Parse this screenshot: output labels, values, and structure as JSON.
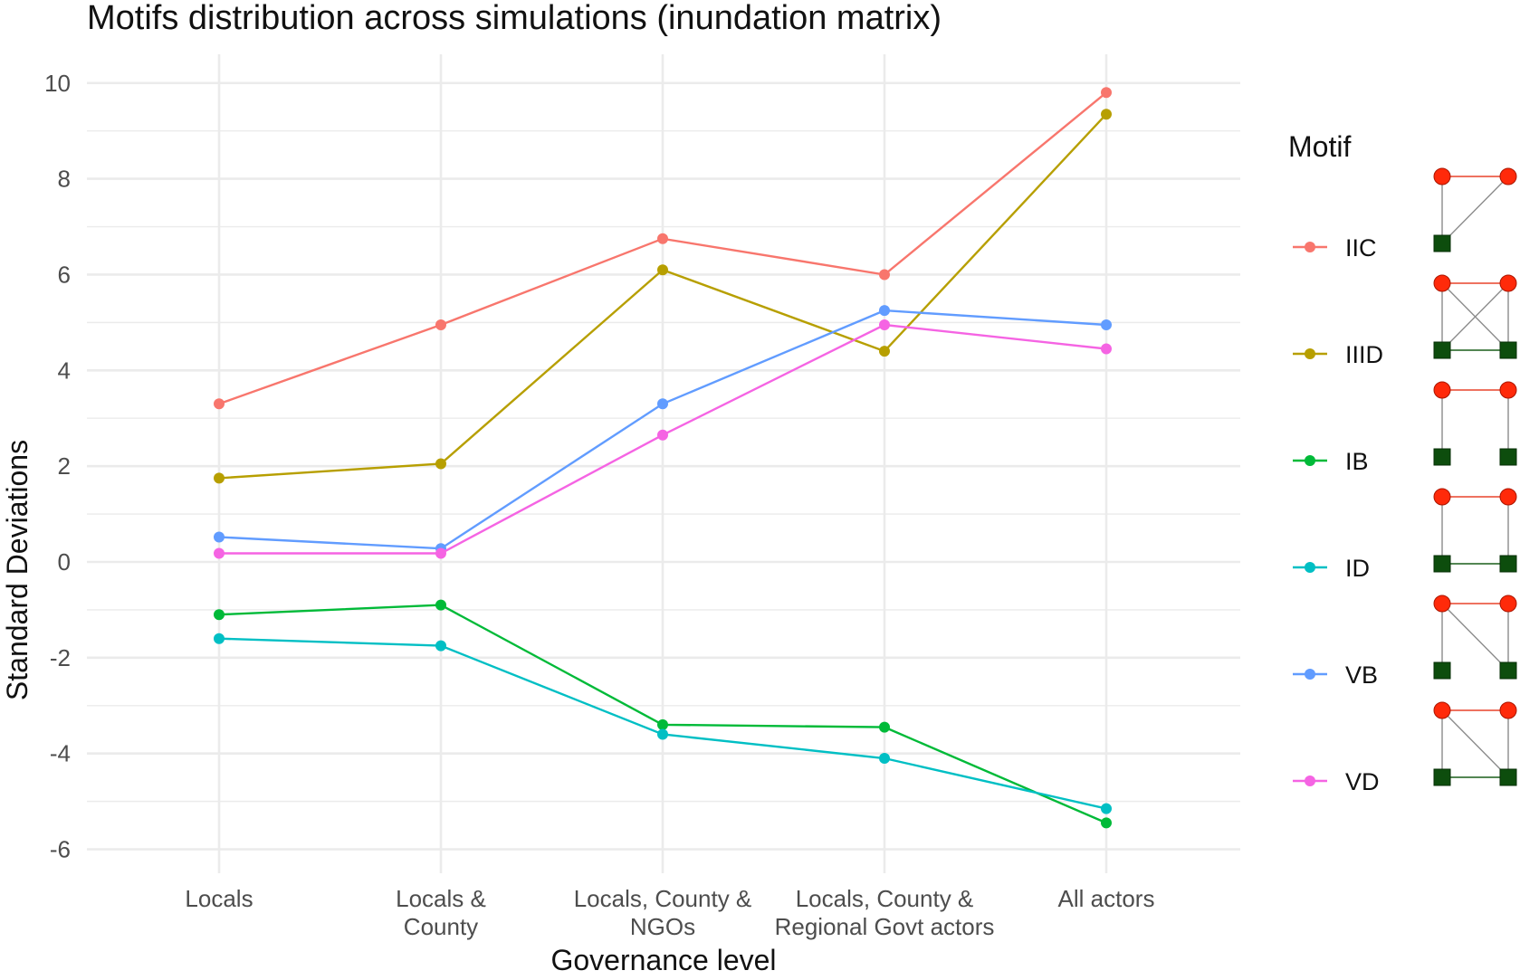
{
  "chart_data": {
    "type": "line",
    "title": "Motifs distribution across simulations (inundation matrix)",
    "xlabel": "Governance level",
    "ylabel": "Standard Deviations",
    "categories": [
      [
        "Locals"
      ],
      [
        "Locals &",
        "County"
      ],
      [
        "Locals, County &",
        "NGOs"
      ],
      [
        "Locals, County &",
        "Regional Govt actors"
      ],
      [
        "All actors"
      ]
    ],
    "ylim": [
      -6.5,
      10.6
    ],
    "yticks": [
      -6,
      -4,
      -2,
      0,
      2,
      4,
      6,
      8,
      10
    ],
    "grid": true,
    "legend": {
      "title": "Motif",
      "placement": "right"
    },
    "series": [
      {
        "name": "IIC",
        "color": "#F8766D",
        "values": [
          3.3,
          4.95,
          6.75,
          6.0,
          9.8
        ],
        "motif": {
          "squares": [
            "bl"
          ],
          "red_edges": [
            [
              "tl",
              "tr"
            ]
          ],
          "gray_edges": [
            [
              "tl",
              "bl"
            ],
            [
              "tr",
              "bl"
            ]
          ],
          "green_edges": []
        }
      },
      {
        "name": "IIID",
        "color": "#B79F00",
        "values": [
          1.75,
          2.05,
          6.1,
          4.4,
          9.35
        ],
        "motif": {
          "squares": [
            "bl",
            "br"
          ],
          "red_edges": [
            [
              "tl",
              "tr"
            ]
          ],
          "gray_edges": [
            [
              "tl",
              "bl"
            ],
            [
              "tr",
              "br"
            ],
            [
              "tl",
              "br"
            ],
            [
              "tr",
              "bl"
            ]
          ],
          "green_edges": [
            [
              "bl",
              "br"
            ]
          ]
        }
      },
      {
        "name": "IB",
        "color": "#00BA38",
        "values": [
          -1.1,
          -0.9,
          -3.4,
          -3.45,
          -5.45
        ],
        "motif": {
          "squares": [
            "bl",
            "br"
          ],
          "red_edges": [
            [
              "tl",
              "tr"
            ]
          ],
          "gray_edges": [
            [
              "tl",
              "bl"
            ],
            [
              "tr",
              "br"
            ]
          ],
          "green_edges": []
        }
      },
      {
        "name": "ID",
        "color": "#00BFC4",
        "values": [
          -1.6,
          -1.75,
          -3.6,
          -4.1,
          -5.15
        ],
        "motif": {
          "squares": [
            "bl",
            "br"
          ],
          "red_edges": [
            [
              "tl",
              "tr"
            ]
          ],
          "gray_edges": [
            [
              "tl",
              "bl"
            ],
            [
              "tr",
              "br"
            ]
          ],
          "green_edges": [
            [
              "bl",
              "br"
            ]
          ]
        }
      },
      {
        "name": "VB",
        "color": "#619CFF",
        "values": [
          0.52,
          0.28,
          3.3,
          5.25,
          4.95
        ],
        "motif": {
          "squares": [
            "bl",
            "br"
          ],
          "red_edges": [
            [
              "tl",
              "tr"
            ]
          ],
          "gray_edges": [
            [
              "tl",
              "bl"
            ],
            [
              "tl",
              "br"
            ],
            [
              "tr",
              "br"
            ]
          ],
          "green_edges": []
        }
      },
      {
        "name": "VD",
        "color": "#F564E3",
        "values": [
          0.18,
          0.18,
          2.65,
          4.95,
          4.45
        ],
        "motif": {
          "squares": [
            "bl",
            "br"
          ],
          "red_edges": [
            [
              "tl",
              "tr"
            ]
          ],
          "gray_edges": [
            [
              "tl",
              "bl"
            ],
            [
              "tl",
              "br"
            ],
            [
              "tr",
              "br"
            ]
          ],
          "green_edges": [
            [
              "bl",
              "br"
            ]
          ]
        }
      }
    ]
  }
}
